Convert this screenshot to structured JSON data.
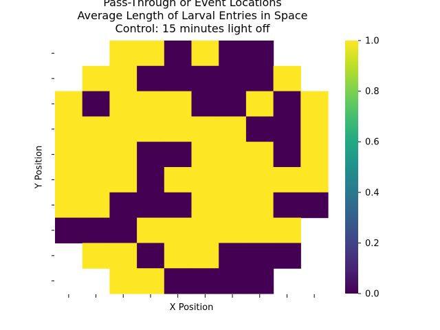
{
  "chart_data": {
    "type": "heatmap",
    "title_lines": [
      "Pass-Through or Event Locations",
      "Average Length of Larval Entries in Space",
      "Control: 15 minutes light off"
    ],
    "xlabel": "X Position",
    "ylabel": "Y Position",
    "xticklabels": [
      "",
      "",
      "",
      "",
      "",
      "",
      "",
      "",
      "",
      ""
    ],
    "yticklabels": [
      "",
      "",
      "",
      "",
      "",
      "",
      "",
      "",
      "",
      ""
    ],
    "colorbar": {
      "colormap": "viridis",
      "vmin": 0.0,
      "vmax": 1.0,
      "ticks": [
        "0.0",
        "0.2",
        "0.4",
        "0.6",
        "0.8",
        "1.0"
      ]
    },
    "colors": {
      "high": "#fde725",
      "low": "#440154"
    },
    "rows": 10,
    "cols": 10,
    "values": [
      [
        null,
        null,
        1,
        1,
        0,
        1,
        0,
        0,
        null,
        null
      ],
      [
        null,
        1,
        1,
        0,
        0,
        0,
        0,
        0,
        1,
        null
      ],
      [
        1,
        0,
        1,
        1,
        1,
        0,
        0,
        1,
        0,
        1
      ],
      [
        1,
        1,
        1,
        1,
        1,
        1,
        1,
        0,
        0,
        1
      ],
      [
        1,
        1,
        1,
        0,
        0,
        1,
        1,
        1,
        0,
        1
      ],
      [
        1,
        1,
        1,
        0,
        1,
        1,
        1,
        1,
        1,
        1
      ],
      [
        1,
        1,
        0,
        0,
        0,
        1,
        1,
        1,
        0,
        0
      ],
      [
        0,
        0,
        0,
        1,
        1,
        1,
        1,
        1,
        1,
        null
      ],
      [
        null,
        1,
        1,
        0,
        1,
        1,
        0,
        0,
        0,
        null
      ],
      [
        null,
        null,
        1,
        1,
        0,
        0,
        0,
        0,
        null,
        null
      ]
    ]
  }
}
